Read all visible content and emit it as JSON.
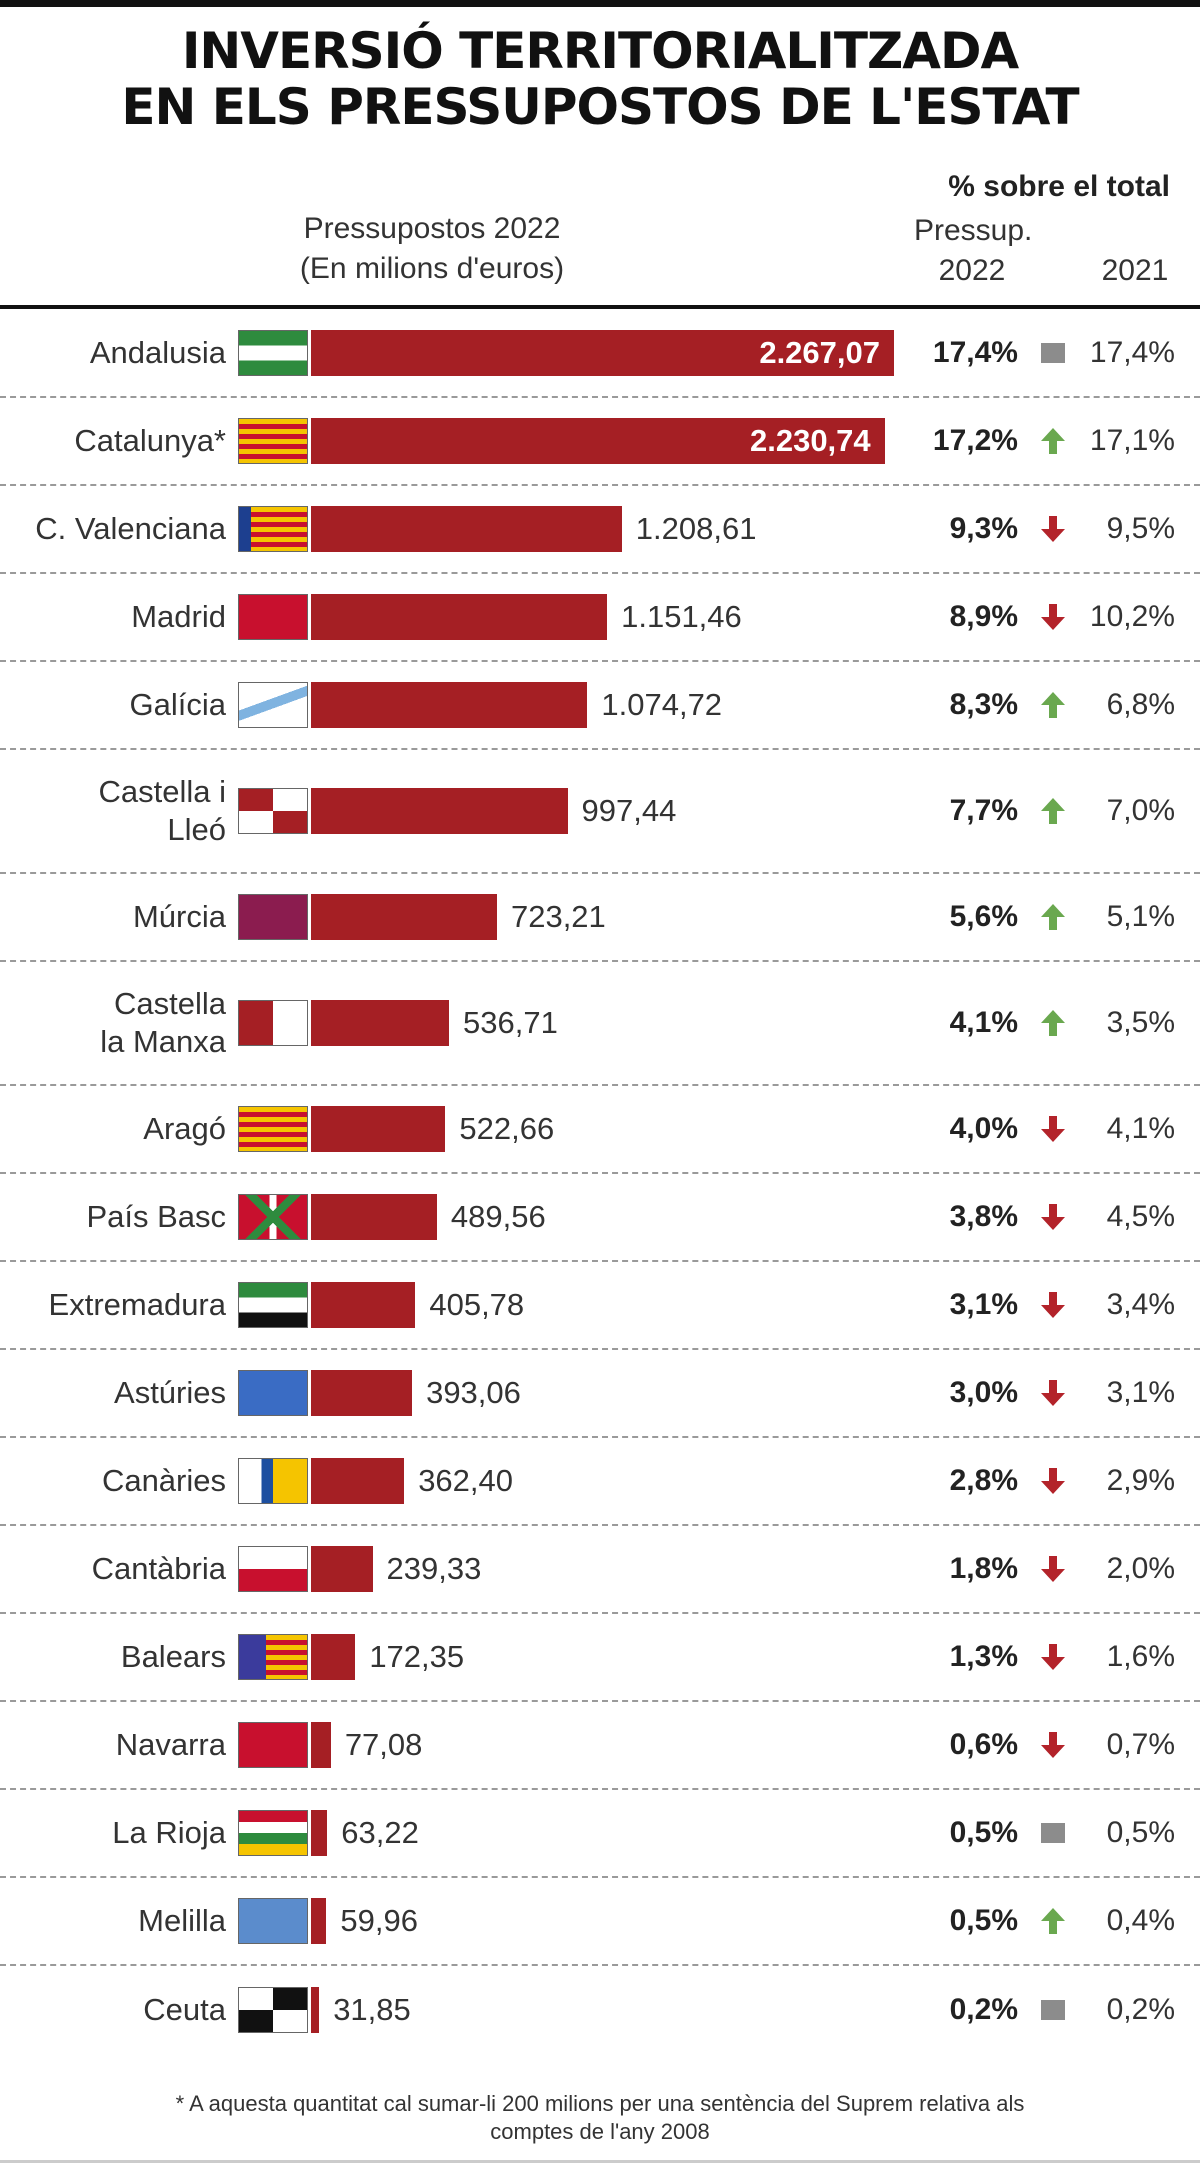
{
  "chart_data": {
    "type": "bar",
    "orientation": "horizontal",
    "title": [
      "INVERSIÓ TERRITORIALITZADA",
      "EN ELS PRESSUPOSTOS DE L'ESTAT"
    ],
    "categories": [
      "Andalusia",
      "Catalunya*",
      "C. Valenciana",
      "Madrid",
      "Galícia",
      "Castella i\nLleó",
      "Múrcia",
      "Castella\nla Manxa",
      "Aragó",
      "País Basc",
      "Extremadura",
      "Astúries",
      "Canàries",
      "Cantàbria",
      "Balears",
      "Navarra",
      "La Rioja",
      "Melilla",
      "Ceuta"
    ],
    "bars": {
      "title": "Pressupostos 2022",
      "subtitle": "(En milions d'euros)",
      "color": "#a51f24",
      "values": [
        2267.07,
        2230.74,
        1208.61,
        1151.46,
        1074.72,
        997.44,
        723.21,
        536.71,
        522.66,
        489.56,
        405.78,
        393.06,
        362.4,
        239.33,
        172.35,
        77.08,
        63.22,
        59.96,
        31.85
      ],
      "value_labels": [
        "2.267,07",
        "2.230,74",
        "1.208,61",
        "1.151,46",
        "1.074,72",
        "997,44",
        "723,21",
        "536,71",
        "522,66",
        "489,56",
        "405,78",
        "393,06",
        "362,40",
        "239,33",
        "172,35",
        "77,08",
        "63,22",
        "59,96",
        "31,85"
      ]
    },
    "share": {
      "title": "% sobre el total",
      "subtitle": "Pressup.",
      "series": [
        {
          "name": "2022",
          "values": [
            17.4,
            17.2,
            9.3,
            8.9,
            8.3,
            7.7,
            5.6,
            4.1,
            4.0,
            3.8,
            3.1,
            3.0,
            2.8,
            1.8,
            1.3,
            0.6,
            0.5,
            0.5,
            0.2
          ],
          "value_labels": [
            "17,4%",
            "17,2%",
            "9,3%",
            "8,9%",
            "8,3%",
            "7,7%",
            "5,6%",
            "4,1%",
            "4,0%",
            "3,8%",
            "3,1%",
            "3,0%",
            "2,8%",
            "1,8%",
            "1,3%",
            "0,6%",
            "0,5%",
            "0,5%",
            "0,2%"
          ]
        },
        {
          "name": "2021",
          "values": [
            17.4,
            17.1,
            9.5,
            10.2,
            6.8,
            7.0,
            5.1,
            3.5,
            4.1,
            4.5,
            3.4,
            3.1,
            2.9,
            2.0,
            1.6,
            0.7,
            0.5,
            0.4,
            0.2
          ],
          "value_labels": [
            "17,4%",
            "17,1%",
            "9,5%",
            "10,2%",
            "6,8%",
            "7,0%",
            "5,1%",
            "3,5%",
            "4,1%",
            "4,5%",
            "3,4%",
            "3,1%",
            "2,9%",
            "2,0%",
            "1,6%",
            "0,7%",
            "0,5%",
            "0,4%",
            "0,2%"
          ]
        }
      ]
    },
    "footnote": "* A aquesta quantitat cal sumar-li 200 milions per una sentència del Suprem relativa als comptes de l'any 2008"
  }
}
